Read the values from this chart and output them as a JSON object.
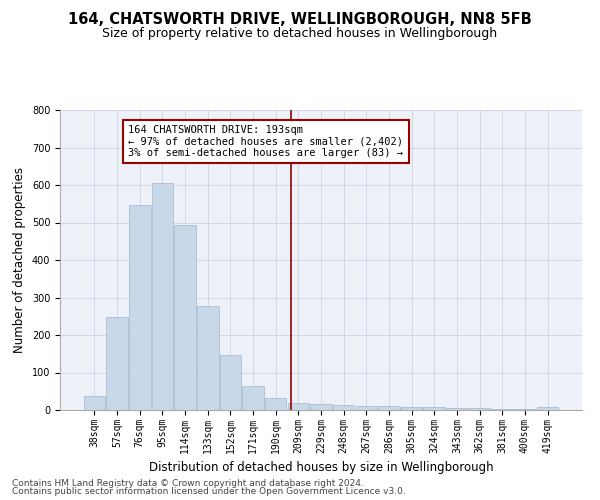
{
  "title": "164, CHATSWORTH DRIVE, WELLINGBOROUGH, NN8 5FB",
  "subtitle": "Size of property relative to detached houses in Wellingborough",
  "xlabel": "Distribution of detached houses by size in Wellingborough",
  "ylabel": "Number of detached properties",
  "bin_labels": [
    "38sqm",
    "57sqm",
    "76sqm",
    "95sqm",
    "114sqm",
    "133sqm",
    "152sqm",
    "171sqm",
    "190sqm",
    "209sqm",
    "229sqm",
    "248sqm",
    "267sqm",
    "286sqm",
    "305sqm",
    "324sqm",
    "343sqm",
    "362sqm",
    "381sqm",
    "400sqm",
    "419sqm"
  ],
  "bar_values": [
    37,
    248,
    548,
    605,
    493,
    277,
    148,
    65,
    33,
    20,
    17,
    14,
    12,
    10,
    8,
    7,
    6,
    5,
    4,
    3,
    8
  ],
  "bar_color": "#c8d8e8",
  "bar_edge_color": "#a0b8cc",
  "vline_x": 8.68,
  "vline_color": "#990000",
  "annotation_text": "164 CHATSWORTH DRIVE: 193sqm\n← 97% of detached houses are smaller (2,402)\n3% of semi-detached houses are larger (83) →",
  "annotation_box_color": "#ffffff",
  "annotation_box_edge_color": "#990000",
  "ylim": [
    0,
    800
  ],
  "yticks": [
    0,
    100,
    200,
    300,
    400,
    500,
    600,
    700,
    800
  ],
  "grid_color": "#d0d8e8",
  "bg_color": "#eef2f8",
  "footer_line1": "Contains HM Land Registry data © Crown copyright and database right 2024.",
  "footer_line2": "Contains public sector information licensed under the Open Government Licence v3.0.",
  "title_fontsize": 10.5,
  "subtitle_fontsize": 9,
  "axis_label_fontsize": 8.5,
  "tick_fontsize": 7,
  "annotation_fontsize": 7.5,
  "footer_fontsize": 6.5
}
